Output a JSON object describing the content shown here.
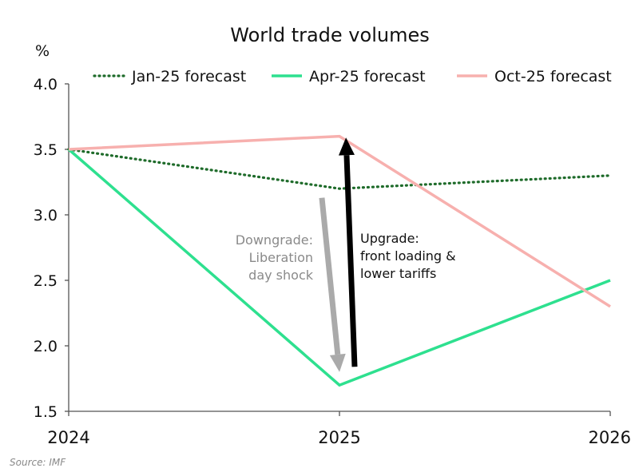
{
  "chart_data": {
    "type": "line",
    "title": "World trade volumes",
    "ylabel": "%",
    "xlabel": "",
    "x": [
      2024,
      2025,
      2026
    ],
    "x_tick_labels": [
      "2024",
      "2025",
      "2026"
    ],
    "ylim": [
      1.5,
      4.0
    ],
    "y_ticks": [
      1.5,
      2.0,
      2.5,
      3.0,
      3.5,
      4.0
    ],
    "y_tick_labels": [
      "1.5",
      "2.0",
      "2.5",
      "3.0",
      "3.5",
      "4.0"
    ],
    "grid": false,
    "legend_position": "top",
    "series": [
      {
        "name": "Jan-25 forecast",
        "values": [
          3.5,
          3.2,
          3.3
        ],
        "color": "#1e6b2a",
        "style": "dotted"
      },
      {
        "name": "Apr-25 forecast",
        "values": [
          3.5,
          1.7,
          2.5
        ],
        "color": "#2ee08f",
        "style": "solid"
      },
      {
        "name": "Oct-25 forecast",
        "values": [
          3.5,
          3.6,
          2.3
        ],
        "color": "#f7b0ae",
        "style": "solid"
      }
    ],
    "annotations": [
      {
        "lines": [
          "Downgrade:",
          "Liberation",
          "day shock"
        ],
        "color": "#8a8a8a",
        "arrow_color": "#aaaaaa",
        "arrow_from": [
          2024.935,
          3.13
        ],
        "arrow_to": [
          2025.0,
          1.8
        ]
      },
      {
        "lines": [
          "Upgrade:",
          "front loading &",
          "lower tariffs"
        ],
        "color": "#111111",
        "arrow_color": "#000000",
        "arrow_from": [
          2025.056,
          1.84
        ],
        "arrow_to": [
          2025.024,
          3.59
        ]
      }
    ]
  },
  "source": "Source: IMF"
}
